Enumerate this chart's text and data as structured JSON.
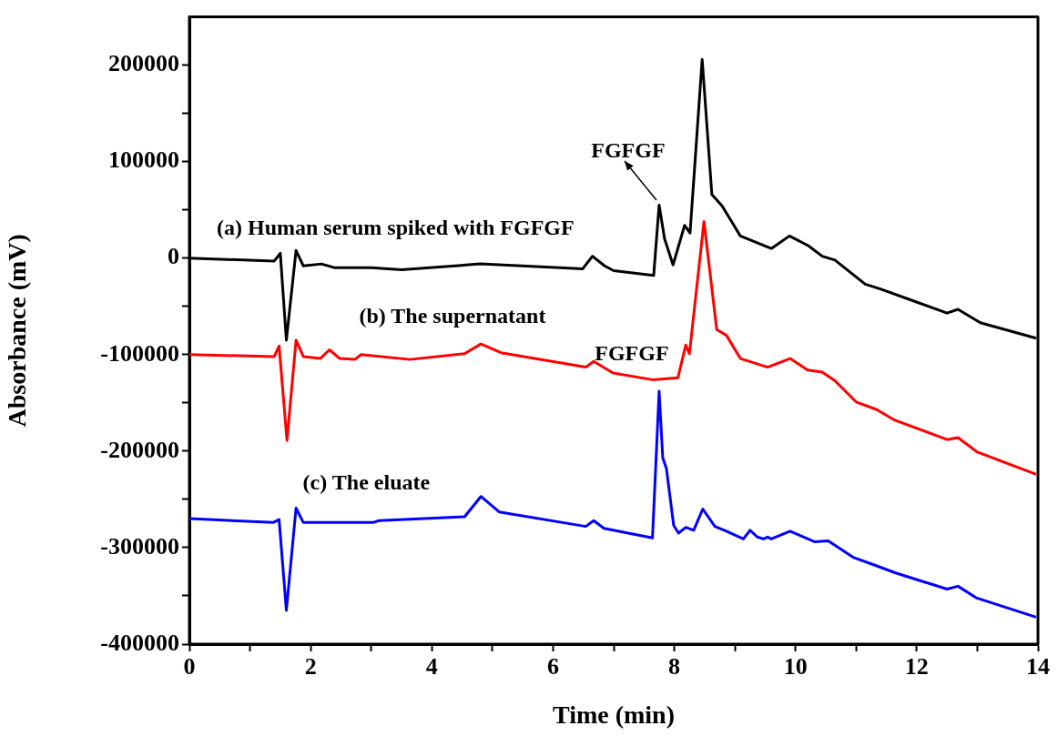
{
  "chart_data": {
    "type": "line",
    "xlabel": "Time (min)",
    "ylabel": "Absorbance (mV)",
    "xlim": [
      0,
      14
    ],
    "ylim": [
      -400000,
      250000
    ],
    "xticks": [
      0,
      {
        "value": 1,
        "label": null
      },
      2,
      {
        "value": 3,
        "label": null
      },
      4,
      {
        "value": 5,
        "label": null
      },
      6,
      {
        "value": 7,
        "label": null
      },
      8,
      {
        "value": 9,
        "label": null
      },
      10,
      {
        "value": 11,
        "label": null
      },
      12,
      {
        "value": 13,
        "label": null
      },
      14
    ],
    "yticks": [
      -400000,
      {
        "value": -350000,
        "label": null
      },
      -300000,
      {
        "value": -250000,
        "label": null
      },
      -200000,
      {
        "value": -150000,
        "label": null
      },
      -100000,
      {
        "value": -50000,
        "label": null
      },
      0,
      {
        "value": 50000,
        "label": null
      },
      100000,
      {
        "value": 150000,
        "label": null
      },
      200000
    ],
    "grid": false,
    "marker": "none",
    "line_style": "solid",
    "series": [
      {
        "color": "#000000",
        "x": [
          0,
          1.4,
          1.5,
          1.6,
          1.76,
          1.88,
          2.18,
          2.4,
          3.0,
          3.5,
          4.8,
          6.49,
          6.65,
          6.85,
          7.0,
          7.66,
          7.75,
          7.84,
          7.98,
          8.17,
          8.26,
          8.46,
          8.62,
          8.79,
          9.09,
          9.6,
          9.9,
          10.21,
          10.44,
          10.65,
          11.15,
          11.4,
          11.8,
          12.5,
          12.68,
          13.05,
          13.97
        ],
        "values": [
          0,
          -3000,
          5000,
          -85000,
          8000,
          -8000,
          -6000,
          -10000,
          -10000,
          -12000,
          -6000,
          -11000,
          2000,
          -8000,
          -13000,
          -18000,
          55000,
          20000,
          -7000,
          34000,
          26000,
          206000,
          66000,
          54000,
          23000,
          10000,
          23000,
          13000,
          2000,
          -2000,
          -27000,
          -32000,
          -41000,
          -57000,
          -53000,
          -67000,
          -83000
        ]
      },
      {
        "color": "#ff0000",
        "x": [
          0,
          1.4,
          1.48,
          1.61,
          1.76,
          1.88,
          2.16,
          2.31,
          2.48,
          2.73,
          2.83,
          3.64,
          4.54,
          4.81,
          5.14,
          6.54,
          6.67,
          6.99,
          7.64,
          8.06,
          8.19,
          8.25,
          8.49,
          8.7,
          8.86,
          9.09,
          9.54,
          9.91,
          10.2,
          10.44,
          10.65,
          11.0,
          11.34,
          11.64,
          12.5,
          12.68,
          13.0,
          13.97
        ],
        "values": [
          -100000,
          -102000,
          -91000,
          -189000,
          -85000,
          -102000,
          -104000,
          -95000,
          -104000,
          -105000,
          -100000,
          -105000,
          -99000,
          -89000,
          -98000,
          -113000,
          -107000,
          -119000,
          -126000,
          -124000,
          -90000,
          -99000,
          38000,
          -74000,
          -80000,
          -104000,
          -113000,
          -104000,
          -116000,
          -118000,
          -127000,
          -149000,
          -157000,
          -168000,
          -188000,
          -186000,
          -201000,
          -224000
        ]
      },
      {
        "color": "#0000ff",
        "x": [
          0,
          1.38,
          1.48,
          1.6,
          1.76,
          1.88,
          3.03,
          3.13,
          4.54,
          4.81,
          5.11,
          6.54,
          6.67,
          6.84,
          7.64,
          7.75,
          7.81,
          7.87,
          7.99,
          8.07,
          8.19,
          8.32,
          8.47,
          8.67,
          8.86,
          9.14,
          9.25,
          9.37,
          9.47,
          9.54,
          9.6,
          9.91,
          10.32,
          10.54,
          10.95,
          11.3,
          11.64,
          12.5,
          12.68,
          12.98,
          13.97
        ],
        "values": [
          -270000,
          -274000,
          -271000,
          -365000,
          -259000,
          -274000,
          -274000,
          -272000,
          -268000,
          -247000,
          -263000,
          -278000,
          -272000,
          -280000,
          -290000,
          -138000,
          -207000,
          -218000,
          -277000,
          -285000,
          -279000,
          -282000,
          -260000,
          -278000,
          -283000,
          -291000,
          -282000,
          -289000,
          -291000,
          -289000,
          -291000,
          -283000,
          -294000,
          -293000,
          -310000,
          -318000,
          -326000,
          -343000,
          -340000,
          -352000,
          -372000
        ]
      }
    ],
    "annotations": [
      {
        "text": "FGFGF",
        "x": 7.75,
        "y": 55000
      },
      {
        "text": "FGFGF",
        "x": 7.75,
        "y": -138000
      },
      {
        "text": "(a) Human serum spiked with FGFGF",
        "x": 3.4,
        "y": -10000
      },
      {
        "text": "(b) The supernatant",
        "x": 4.34,
        "y": -101000
      },
      {
        "text": "(c) The eluate",
        "x": 2.92,
        "y": -274000
      }
    ]
  }
}
